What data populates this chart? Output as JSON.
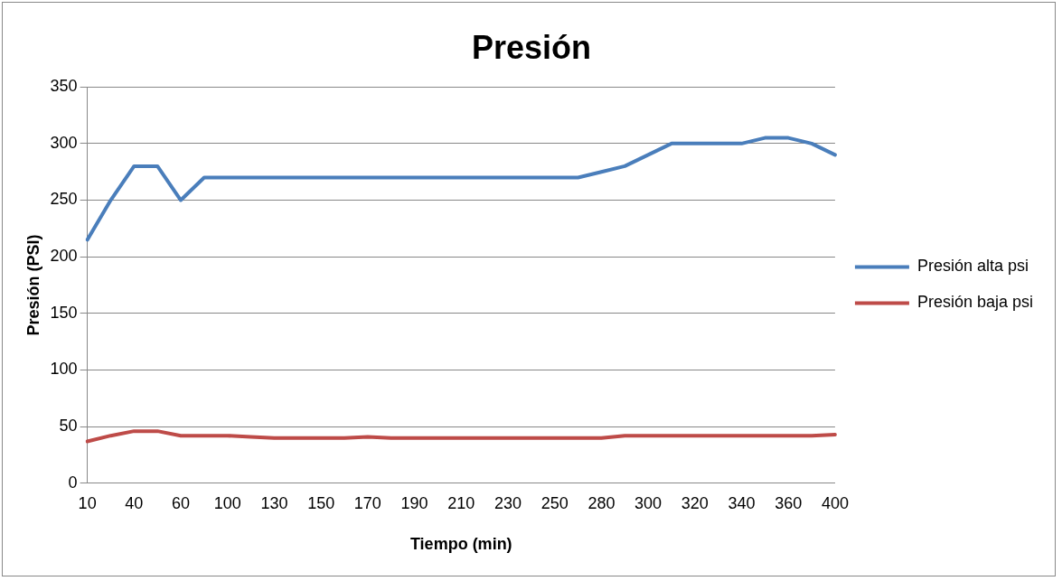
{
  "chart_data": {
    "type": "line",
    "title": "Presión",
    "xlabel": "Tiempo (min)",
    "ylabel": "Presión (PSI)",
    "categories": [
      "10",
      null,
      "40",
      null,
      "60",
      null,
      "100",
      null,
      "130",
      null,
      "150",
      null,
      "170",
      null,
      "190",
      null,
      "210",
      null,
      "230",
      null,
      "250",
      null,
      "280",
      null,
      "300",
      null,
      "320",
      null,
      "340",
      null,
      "360",
      null,
      "400"
    ],
    "series": [
      {
        "name": "Presión alta psi",
        "color": "#4a7ebb",
        "values": [
          215,
          250,
          280,
          280,
          250,
          270,
          270,
          270,
          270,
          270,
          270,
          270,
          270,
          270,
          270,
          270,
          270,
          270,
          270,
          270,
          270,
          270,
          275,
          280,
          290,
          300,
          300,
          300,
          300,
          305,
          305,
          300,
          290
        ]
      },
      {
        "name": "Presión baja psi",
        "color": "#be4b48",
        "values": [
          37,
          42,
          46,
          46,
          42,
          42,
          42,
          41,
          40,
          40,
          40,
          40,
          41,
          40,
          40,
          40,
          40,
          40,
          40,
          40,
          40,
          40,
          40,
          42,
          42,
          42,
          42,
          42,
          42,
          42,
          42,
          42,
          43
        ]
      }
    ],
    "ylim": [
      0,
      350
    ],
    "yticks": [
      0,
      50,
      100,
      150,
      200,
      250,
      300,
      350
    ],
    "grid": "y",
    "legend": "right",
    "marker": "none",
    "line_style": "solid"
  }
}
